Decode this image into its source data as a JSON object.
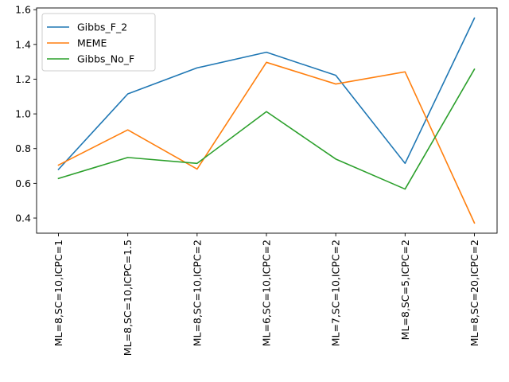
{
  "chart_data": {
    "type": "line",
    "title": "",
    "xlabel": "",
    "ylabel": "",
    "categories": [
      "ML=8,SC=10,ICPC=1",
      "ML=8,SC=10,ICPC=1.5",
      "ML=8,SC=10,ICPC=2",
      "ML=6,SC=10,ICPC=2",
      "ML=7,SC=10,ICPC=2",
      "ML=8,SC=5,ICPC=2",
      "ML=8,SC=20,ICPC=2"
    ],
    "series": [
      {
        "name": "Gibbs_F_2",
        "color": "#1f77b4",
        "values": [
          0.68,
          1.115,
          1.265,
          1.355,
          1.222,
          0.715,
          1.551
        ]
      },
      {
        "name": "MEME",
        "color": "#ff7f0e",
        "values": [
          0.705,
          0.908,
          0.682,
          1.297,
          1.172,
          1.242,
          0.372
        ]
      },
      {
        "name": "Gibbs_No_F",
        "color": "#2ca02c",
        "values": [
          0.628,
          0.749,
          0.715,
          1.013,
          0.74,
          0.567,
          1.257
        ]
      }
    ],
    "yticks": [
      "0.4",
      "0.6",
      "0.8",
      "1.0",
      "1.2",
      "1.4",
      "1.6"
    ],
    "ylim": [
      0.313,
      1.61
    ],
    "grid": false,
    "legend_position": "upper-left"
  }
}
